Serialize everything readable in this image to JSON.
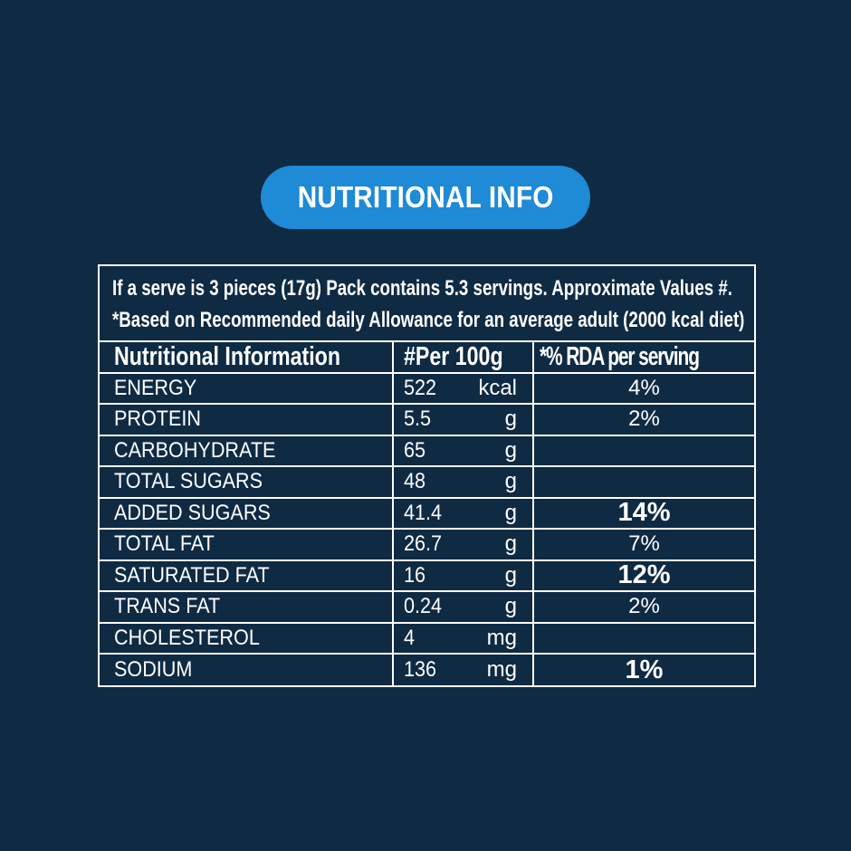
{
  "badge": {
    "title": "NUTRITIONAL INFO"
  },
  "intro": {
    "line1": "If a serve is 3 pieces (17g) Pack contains 5.3 servings. Approximate Values #.",
    "line2": "*Based on Recommended daily Allowance for an average adult (2000 kcal diet)"
  },
  "table": {
    "headers": {
      "name": "Nutritional Information",
      "per100": "#Per 100g",
      "rda": "*% RDA per serving"
    },
    "rows": [
      {
        "name": "ENERGY",
        "value": "522",
        "unit": "kcal",
        "rda": "4%",
        "rda_bold": false
      },
      {
        "name": "PROTEIN",
        "value": "5.5",
        "unit": "g",
        "rda": "2%",
        "rda_bold": false
      },
      {
        "name": "CARBOHYDRATE",
        "value": "65",
        "unit": "g",
        "rda": "",
        "rda_bold": false
      },
      {
        "name": "TOTAL SUGARS",
        "value": "48",
        "unit": "g",
        "rda": "",
        "rda_bold": false
      },
      {
        "name": "ADDED SUGARS",
        "value": "41.4",
        "unit": "g",
        "rda": "14%",
        "rda_bold": true
      },
      {
        "name": "TOTAL FAT",
        "value": "26.7",
        "unit": "g",
        "rda": "7%",
        "rda_bold": false
      },
      {
        "name": "SATURATED FAT",
        "value": "16",
        "unit": "g",
        "rda": "12%",
        "rda_bold": true
      },
      {
        "name": "TRANS FAT",
        "value": "0.24",
        "unit": "g",
        "rda": "2%",
        "rda_bold": false
      },
      {
        "name": "CHOLESTEROL",
        "value": "4",
        "unit": "mg",
        "rda": "",
        "rda_bold": false
      },
      {
        "name": "SODIUM",
        "value": "136",
        "unit": "mg",
        "rda": "1%",
        "rda_bold": true
      }
    ]
  },
  "colors": {
    "background": "#0f2a43",
    "badge": "#1f8ad6",
    "text": "#ffffff"
  }
}
